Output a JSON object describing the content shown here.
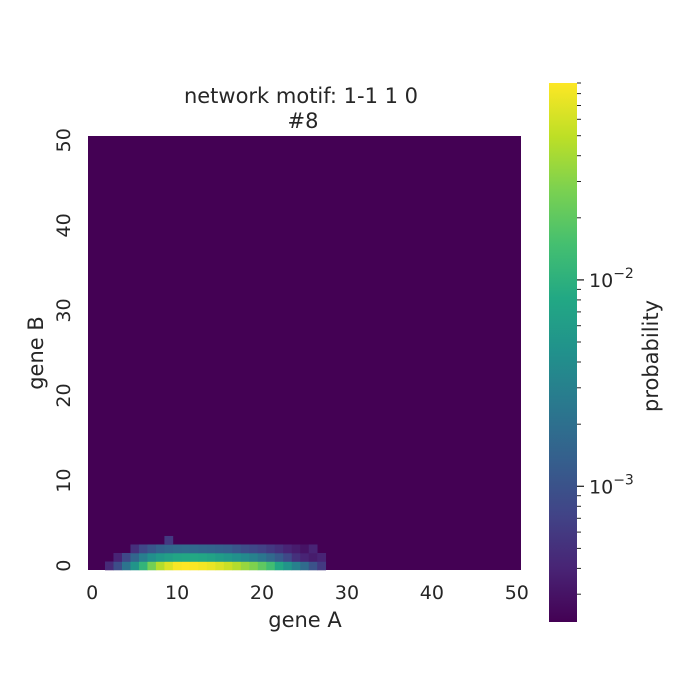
{
  "chart_data": {
    "type": "heatmap",
    "title_line1": "network motif:  1-1 1 0",
    "title_line2": "#8",
    "xlabel": "gene A",
    "ylabel": "gene B",
    "xlim": [
      0,
      51
    ],
    "ylim": [
      0,
      51
    ],
    "x_ticks": [
      0,
      10,
      20,
      30,
      40,
      50
    ],
    "y_ticks": [
      0,
      10,
      20,
      30,
      40,
      50
    ],
    "x_tick_labels": [
      "0",
      "10",
      "20",
      "30",
      "40",
      "50"
    ],
    "y_tick_labels": [
      "0",
      "10",
      "20",
      "30",
      "40",
      "50"
    ],
    "colorbar": {
      "label": "probability",
      "scale": "log",
      "vmin": 0.00022,
      "vmax": 0.09,
      "major_ticks": [
        0.001,
        0.01
      ],
      "major_tick_labels": [
        "10",
        "10"
      ],
      "major_tick_exponents": [
        "−3",
        "−2"
      ],
      "colormap": "viridis"
    },
    "background_value": 0.00022,
    "cells": [
      {
        "row": 0,
        "start": 2,
        "values": [
          0.00045,
          0.0009,
          0.0022,
          0.005,
          0.011,
          0.025,
          0.045,
          0.065,
          0.085,
          0.09,
          0.088,
          0.082,
          0.075,
          0.065,
          0.055,
          0.045,
          0.035,
          0.028,
          0.02,
          0.014,
          0.008,
          0.005,
          0.003,
          0.0018,
          0.001,
          0.0006
        ]
      },
      {
        "row": 1,
        "start": 3,
        "values": [
          0.0004,
          0.0008,
          0.0016,
          0.0028,
          0.0042,
          0.0055,
          0.0065,
          0.0075,
          0.008,
          0.0082,
          0.0078,
          0.007,
          0.006,
          0.0052,
          0.0045,
          0.0038,
          0.003,
          0.0023,
          0.0017,
          0.0012,
          0.0008,
          0.0005,
          0.0004,
          0.00035,
          0.0004
        ]
      },
      {
        "row": 2,
        "start": 5,
        "values": [
          0.0005,
          0.0008,
          0.0011,
          0.0014,
          0.0016,
          0.0017,
          0.0018,
          0.0017,
          0.0016,
          0.0015,
          0.0014,
          0.0013,
          0.0011,
          0.0009,
          0.0008,
          0.0007,
          0.0006,
          0.0005,
          0.0004,
          0.00035,
          0.0003,
          0.0004
        ]
      },
      {
        "row": 3,
        "start": 9,
        "values": [
          0.0006
        ]
      }
    ]
  }
}
